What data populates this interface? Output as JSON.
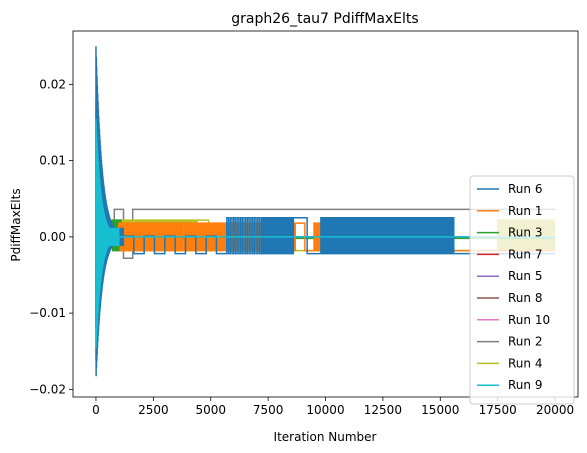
{
  "chart_data": {
    "type": "line",
    "title": "graph26_tau7 PdiffMaxElts",
    "xlabel": "Iteration Number",
    "ylabel": "PdiffMaxElts",
    "xlim": [
      -1000,
      21000
    ],
    "ylim": [
      -0.021,
      0.027
    ],
    "xticks": [
      0,
      2500,
      5000,
      7500,
      10000,
      12500,
      15000,
      17500,
      20000
    ],
    "xtick_labels": [
      "0",
      "2500",
      "5000",
      "7500",
      "10000",
      "12500",
      "15000",
      "17500",
      "20000"
    ],
    "yticks": [
      -0.02,
      -0.01,
      0.0,
      0.01,
      0.02
    ],
    "ytick_labels": [
      "−0.02",
      "−0.01",
      "0.00",
      "0.01",
      "0.02"
    ],
    "grid": false,
    "legend_position": "lower-right",
    "series": [
      {
        "name": "Run 6",
        "color": "#1f77b4",
        "initial_spike": {
          "max": 0.025,
          "min": -0.0188
        },
        "settle": 1200,
        "oscillation": [
          {
            "x0": 1200,
            "x1": 5700,
            "hi": 0.0001,
            "lo": -0.0022,
            "period": 900
          },
          {
            "x0": 5700,
            "x1": 7200,
            "hi": 0.0025,
            "lo": -0.0022,
            "period": 150
          },
          {
            "x0": 7200,
            "x1": 8600,
            "hi": 0.0025,
            "lo": -0.0022,
            "period": 40
          },
          {
            "x0": 8600,
            "x1": 9800,
            "hi": 0.0025,
            "lo": -0.0022,
            "period": 1200
          },
          {
            "x0": 9800,
            "x1": 15600,
            "hi": 0.0025,
            "lo": -0.0022,
            "period": 25
          },
          {
            "x0": 15600,
            "x1": 20000,
            "hi": -0.0022,
            "lo": -0.0022,
            "period": 0
          }
        ]
      },
      {
        "name": "Run 1",
        "color": "#ff7f0e",
        "initial_spike": {
          "max": 0.0165,
          "min": -0.0165
        },
        "settle": 1000,
        "oscillation": [
          {
            "x0": 1000,
            "x1": 3800,
            "hi": 0.0018,
            "lo": -0.0018,
            "period": 120
          },
          {
            "x0": 3800,
            "x1": 8700,
            "hi": 0.0018,
            "lo": -0.0018,
            "period": 80
          },
          {
            "x0": 8700,
            "x1": 9500,
            "hi": 0.0018,
            "lo": -0.0018,
            "period": 800
          },
          {
            "x0": 9500,
            "x1": 10300,
            "hi": 0.0018,
            "lo": -0.0018,
            "period": 60
          },
          {
            "x0": 10300,
            "x1": 20000,
            "hi": -0.0018,
            "lo": -0.0018,
            "period": 0
          }
        ]
      },
      {
        "name": "Run 3",
        "color": "#2ca02c",
        "initial_spike": {
          "max": 0.012,
          "min": -0.012
        },
        "settle": 700,
        "oscillation": [
          {
            "x0": 700,
            "x1": 1100,
            "hi": 0.0022,
            "lo": -0.0018,
            "period": 60
          },
          {
            "x0": 1100,
            "x1": 20000,
            "hi": -0.0002,
            "lo": -0.0002,
            "period": 0
          }
        ]
      },
      {
        "name": "Run 7",
        "color": "#d62728",
        "initial_spike": {
          "max": 0.0125,
          "min": -0.0125
        },
        "settle": 700,
        "oscillation": [
          {
            "x0": 700,
            "x1": 20000,
            "hi": 0.0,
            "lo": 0.0,
            "period": 0
          }
        ]
      },
      {
        "name": "Run 5",
        "color": "#9467bd",
        "initial_spike": {
          "max": 0.0115,
          "min": -0.0115
        },
        "settle": 700,
        "oscillation": [
          {
            "x0": 700,
            "x1": 20000,
            "hi": 0.0,
            "lo": 0.0,
            "period": 0
          }
        ]
      },
      {
        "name": "Run 8",
        "color": "#8c564b",
        "initial_spike": {
          "max": 0.0115,
          "min": -0.0115
        },
        "settle": 700,
        "oscillation": [
          {
            "x0": 700,
            "x1": 20000,
            "hi": 0.0,
            "lo": 0.0,
            "period": 0
          }
        ]
      },
      {
        "name": "Run 10",
        "color": "#e377c2",
        "initial_spike": {
          "max": 0.0178,
          "min": -0.0165
        },
        "settle": 900,
        "oscillation": [
          {
            "x0": 900,
            "x1": 2600,
            "hi": 0.0018,
            "lo": -0.0016,
            "period": 100
          },
          {
            "x0": 2600,
            "x1": 20000,
            "hi": 0.0,
            "lo": 0.0,
            "period": 0
          }
        ]
      },
      {
        "name": "Run 2",
        "color": "#7f7f7f",
        "initial_spike": {
          "max": 0.0125,
          "min": -0.0125
        },
        "settle": 800,
        "oscillation": [
          {
            "x0": 800,
            "x1": 1600,
            "hi": 0.0036,
            "lo": -0.0028,
            "period": 800
          },
          {
            "x0": 1600,
            "x1": 20000,
            "hi": 0.0036,
            "lo": 0.0036,
            "period": 0
          }
        ]
      },
      {
        "name": "Run 4",
        "color": "#bcbd22",
        "initial_spike": {
          "max": 0.0145,
          "min": -0.0145
        },
        "settle": 900,
        "oscillation": [
          {
            "x0": 900,
            "x1": 4400,
            "hi": 0.0022,
            "lo": -0.0018,
            "period": 90
          },
          {
            "x0": 4400,
            "x1": 5400,
            "hi": 0.0022,
            "lo": -0.0018,
            "period": 1000
          },
          {
            "x0": 5400,
            "x1": 17500,
            "hi": -0.0018,
            "lo": -0.0018,
            "period": 0
          },
          {
            "x0": 17500,
            "x1": 20000,
            "hi": 0.0022,
            "lo": -0.0018,
            "period": 50
          }
        ]
      },
      {
        "name": "Run 9",
        "color": "#17becf",
        "initial_spike": {
          "max": 0.0155,
          "min": -0.015
        },
        "settle": 1000,
        "oscillation": [
          {
            "x0": 1000,
            "x1": 20000,
            "hi": 0.0,
            "lo": 0.0,
            "period": 0
          }
        ]
      }
    ],
    "draw_order": [
      5,
      6,
      7,
      8,
      3,
      4,
      2,
      1,
      0,
      9
    ]
  }
}
